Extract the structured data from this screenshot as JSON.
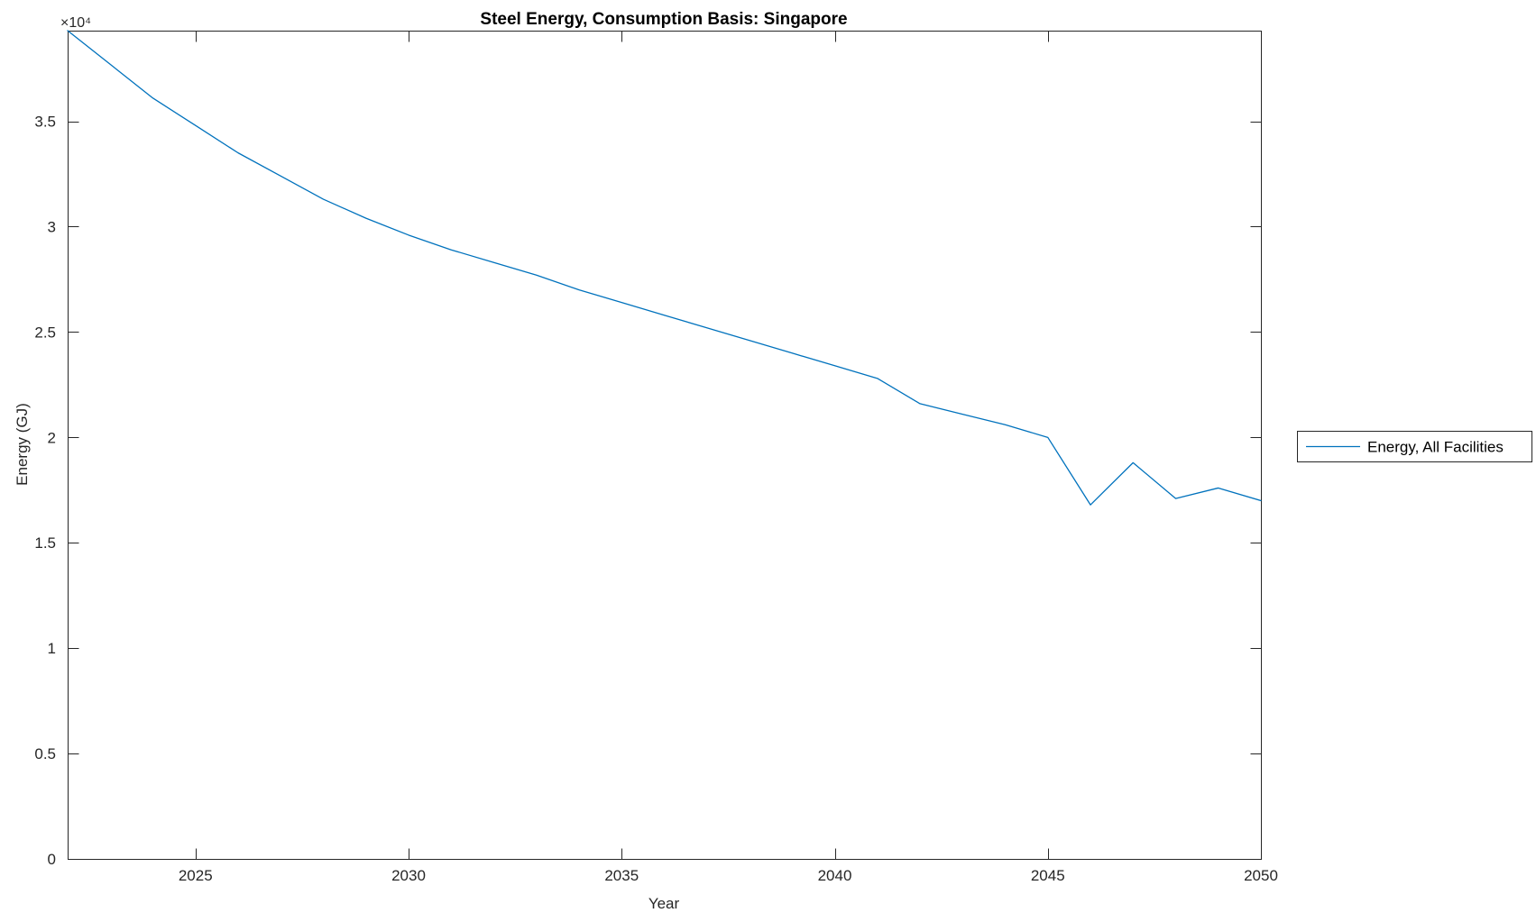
{
  "chart_data": {
    "type": "line",
    "title": "Steel Energy, Consumption Basis: Singapore",
    "xlabel": "Year",
    "ylabel": "Energy (GJ)",
    "y_multiplier_label": "×10⁴",
    "xlim": [
      2022,
      2050
    ],
    "ylim": [
      0,
      39300
    ],
    "x_ticks": [
      2025,
      2030,
      2035,
      2040,
      2045,
      2050
    ],
    "x_tick_labels": [
      "2025",
      "2030",
      "2035",
      "2040",
      "2045",
      "2050"
    ],
    "y_ticks": [
      0,
      5000,
      10000,
      15000,
      20000,
      25000,
      30000,
      35000
    ],
    "y_tick_labels": [
      "0",
      "0.5",
      "1",
      "1.5",
      "2",
      "2.5",
      "3",
      "3.5"
    ],
    "grid": false,
    "legend_position": "right-outside",
    "line_color": "#0072BD",
    "axis_color": "#262626",
    "x": [
      2022,
      2023,
      2024,
      2025,
      2026,
      2027,
      2028,
      2029,
      2030,
      2031,
      2032,
      2033,
      2034,
      2035,
      2036,
      2037,
      2038,
      2039,
      2040,
      2041,
      2042,
      2043,
      2044,
      2045,
      2046,
      2047,
      2048,
      2049,
      2050
    ],
    "series": [
      {
        "name": "Energy, All Facilities",
        "values": [
          39300,
          37700,
          36100,
          34800,
          33500,
          32400,
          31300,
          30400,
          29600,
          28900,
          28300,
          27700,
          27000,
          26400,
          25800,
          25200,
          24600,
          24000,
          23400,
          22800,
          21600,
          21100,
          20600,
          20000,
          16800,
          18800,
          17100,
          17600,
          17000
        ]
      }
    ]
  }
}
